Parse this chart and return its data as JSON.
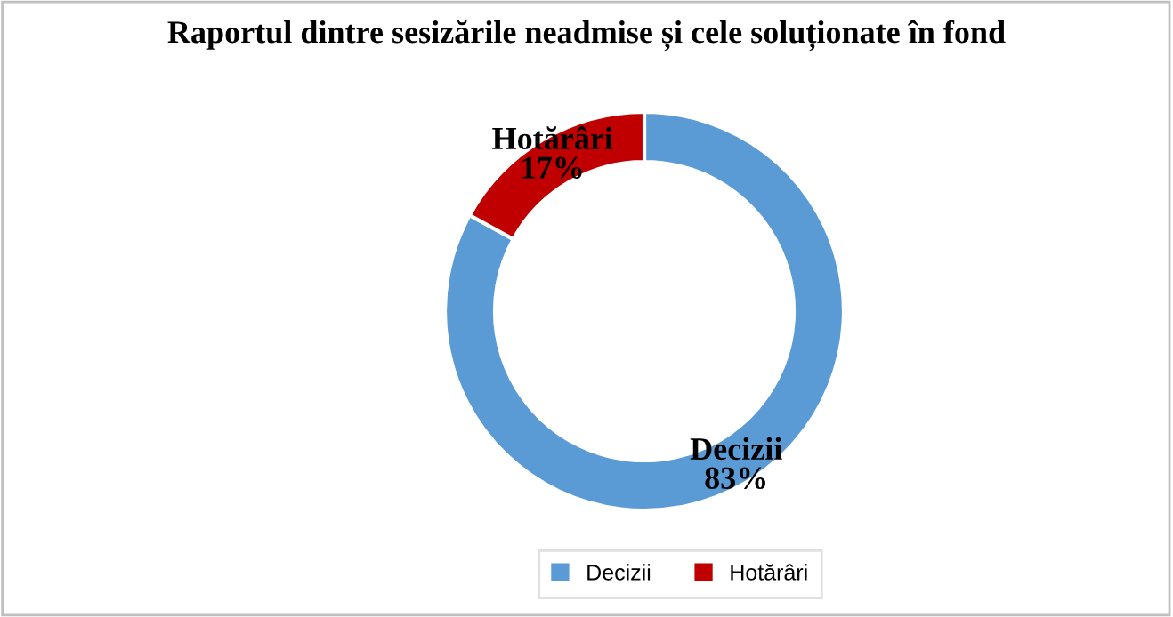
{
  "chart_data": {
    "type": "donut",
    "title": "Raportul dintre sesizările neadmise și cele soluționate în fond",
    "categories": [
      "Decizii",
      "Hotărâri"
    ],
    "values": [
      83,
      17
    ],
    "value_labels": [
      "83%",
      "17%"
    ],
    "colors": [
      "#5b9bd5",
      "#c00000"
    ],
    "legend": "bottom"
  }
}
